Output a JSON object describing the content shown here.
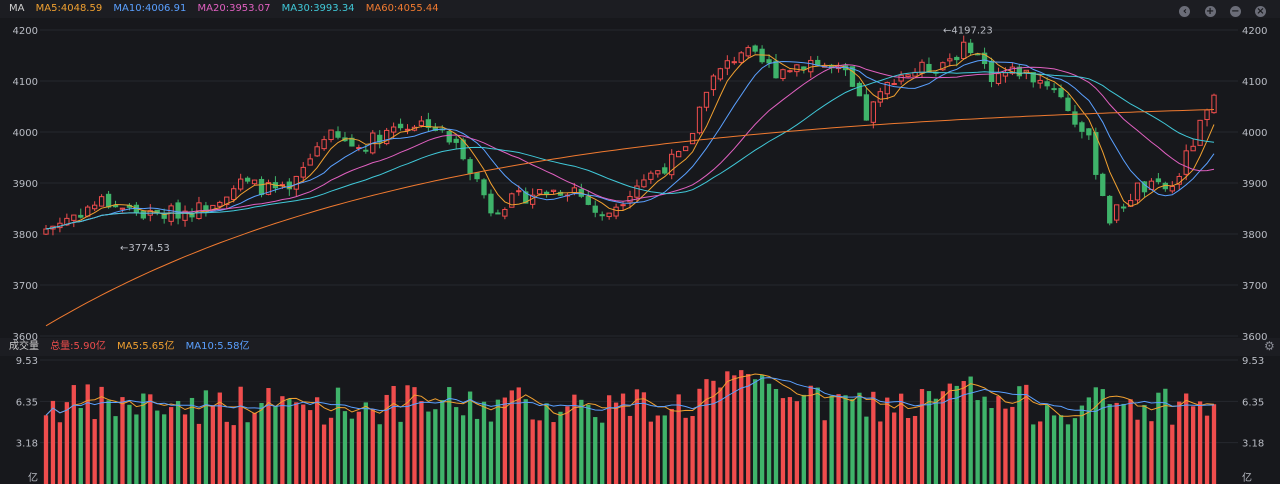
{
  "header": {
    "indicator_label": "MA",
    "ma_items": [
      {
        "label": "MA5:4048.59",
        "color": "#f0a030"
      },
      {
        "label": "MA10:4006.91",
        "color": "#5aa0ff"
      },
      {
        "label": "MA20:3953.07",
        "color": "#e060c0"
      },
      {
        "label": "MA30:3993.34",
        "color": "#40c8d8"
      },
      {
        "label": "MA60:4055.44",
        "color": "#f07a30"
      }
    ]
  },
  "volume_header": {
    "label": "成交量",
    "items": [
      {
        "label": "总量:5.90亿",
        "color": "#ef4d4d"
      },
      {
        "label": "MA5:5.65亿",
        "color": "#f0a030"
      },
      {
        "label": "MA10:5.58亿",
        "color": "#5aa0ff"
      }
    ]
  },
  "chart_data": [
    {
      "type": "candlestick",
      "ylim": [
        3600,
        4200
      ],
      "yticks": [
        "4200",
        "4100",
        "4000",
        "3900",
        "3800",
        "3700",
        "3600"
      ],
      "annotations": [
        {
          "text": "←4197.23",
          "value": 4197.23
        },
        {
          "text": "←3774.53",
          "value": 3774.53
        }
      ],
      "colors": {
        "up": "#ef4d4d",
        "down": "#3fb36a"
      }
    },
    {
      "type": "bar",
      "title": "成交量",
      "yticks": [
        "9.53",
        "6.35",
        "3.18"
      ],
      "unit": "亿",
      "ylim": [
        0,
        10
      ]
    }
  ]
}
